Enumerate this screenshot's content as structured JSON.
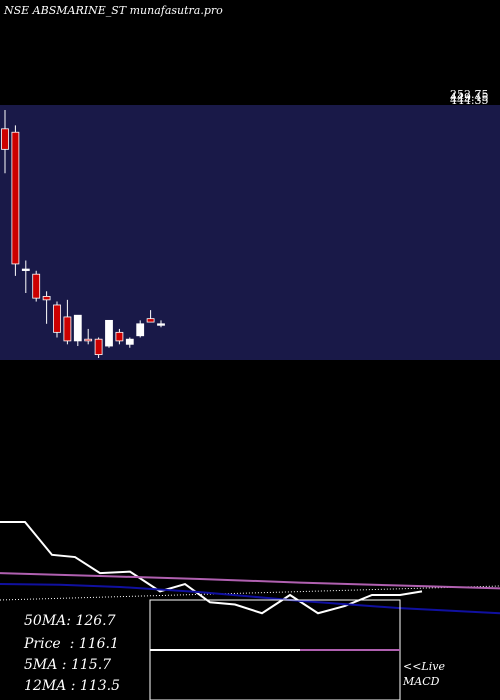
{
  "title": "NSE ABSMARINE_ST munafasutra.pro",
  "price_labels": [
    "252.75",
    "449.45",
    "444.35"
  ],
  "stats": [
    {
      "label": "50MA",
      "value": "126.7"
    },
    {
      "label": "Price",
      "value": "116.1"
    },
    {
      "label": "5MA",
      "value": "115.7"
    },
    {
      "label": "12MA",
      "value": "113.5"
    }
  ],
  "live_link": "<<Live",
  "macd_label": "MACD",
  "colors": {
    "background": "#000000",
    "price_panel": "#191948",
    "bear_candle": "#cc0000",
    "bull_candle": "#ffffff",
    "ma_white": "#ffffff",
    "ma_violet": "#b060b0",
    "ma_blue": "#1010a0"
  },
  "chart_data": {
    "type": "candlestick",
    "title": "NSE ABSMARINE_ST munafasutra.pro",
    "price_axis": {
      "min": 100,
      "max": 245
    },
    "candles": [
      {
        "open": 234,
        "high": 245,
        "low": 208,
        "close": 222
      },
      {
        "open": 232,
        "high": 236,
        "low": 148,
        "close": 155
      },
      {
        "open": 152,
        "high": 157,
        "low": 138,
        "close": 152
      },
      {
        "open": 149,
        "high": 151,
        "low": 133,
        "close": 135
      },
      {
        "open": 136,
        "high": 139,
        "low": 120,
        "close": 134
      },
      {
        "open": 131,
        "high": 133,
        "low": 112,
        "close": 115
      },
      {
        "open": 124,
        "high": 134,
        "low": 108,
        "close": 110
      },
      {
        "open": 110,
        "high": 125,
        "low": 107,
        "close": 125
      },
      {
        "open": 111,
        "high": 117,
        "low": 108,
        "close": 110
      },
      {
        "open": 111,
        "high": 112,
        "low": 100,
        "close": 102
      },
      {
        "open": 107,
        "high": 122,
        "low": 106,
        "close": 122
      },
      {
        "open": 115,
        "high": 117,
        "low": 108,
        "close": 110
      },
      {
        "open": 108,
        "high": 112,
        "low": 106,
        "close": 111
      },
      {
        "open": 113,
        "high": 122,
        "low": 112,
        "close": 120
      },
      {
        "open": 123,
        "high": 128,
        "low": 121,
        "close": 121
      },
      {
        "open": 120,
        "high": 122,
        "low": 118,
        "close": 120
      }
    ],
    "indicator_axis": {
      "min": 0,
      "max": 100
    },
    "indicator_series": [
      {
        "color": "#ffffff",
        "x": [
          0,
          25,
          52,
          75,
          100,
          130,
          160,
          185,
          210,
          235,
          262,
          290,
          318,
          345,
          372,
          400,
          422
        ],
        "y": [
          100,
          100,
          55,
          52,
          30,
          32,
          5,
          15,
          -10,
          -13,
          -25,
          0,
          -25,
          -15,
          0,
          0,
          5
        ]
      },
      {
        "color": "#b060b0",
        "x": [
          0,
          100,
          200,
          300,
          400,
          500
        ],
        "y": [
          30,
          26,
          22,
          17,
          13,
          9
        ]
      },
      {
        "color": "#1010a0",
        "x": [
          0,
          60,
          120,
          200,
          300,
          400,
          500
        ],
        "y": [
          15,
          14,
          11,
          4,
          -8,
          -18,
          -25
        ]
      }
    ],
    "macd_series": [
      {
        "color": "#ffffff",
        "x": [
          150,
          300
        ],
        "y": [
          0,
          0
        ]
      },
      {
        "color": "#b060b0",
        "x": [
          300,
          400
        ],
        "y": [
          0,
          0
        ]
      }
    ]
  }
}
